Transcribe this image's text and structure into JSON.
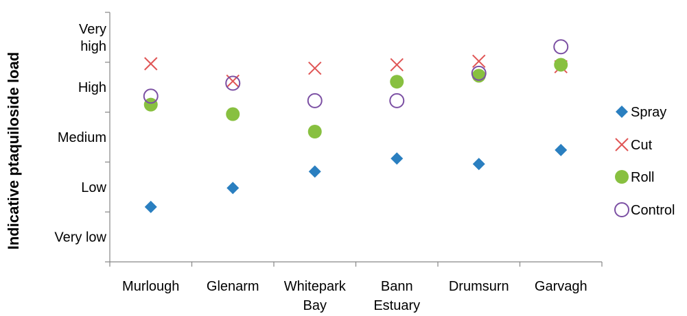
{
  "chart_data": {
    "type": "scatter",
    "title": "",
    "xlabel": "",
    "ylabel": "Indicative ptaquiloside load",
    "categories": [
      [
        "Murlough"
      ],
      [
        "Glenarm"
      ],
      [
        "Whitepark",
        "Bay"
      ],
      [
        "Bann",
        "Estuary"
      ],
      [
        "Drumsurn"
      ],
      [
        "Garvagh"
      ]
    ],
    "y_levels": [
      [
        "Very low"
      ],
      [
        "Low"
      ],
      [
        "Medium"
      ],
      [
        "High"
      ],
      [
        "Very",
        "high"
      ]
    ],
    "ylim": [
      0,
      5
    ],
    "grid": false,
    "legend_position": "right",
    "series": [
      {
        "name": "Spray",
        "marker": "diamond",
        "color": "#2a7fc0",
        "values": [
          1.1,
          1.48,
          1.81,
          2.07,
          1.96,
          2.24
        ]
      },
      {
        "name": "Cut",
        "marker": "x",
        "color": "#e05555",
        "values": [
          3.97,
          3.62,
          3.88,
          3.95,
          4.02,
          3.91
        ]
      },
      {
        "name": "Roll",
        "marker": "circle",
        "color": "#88c040",
        "values": [
          3.15,
          2.96,
          2.61,
          3.61,
          3.73,
          3.95
        ]
      },
      {
        "name": "Control",
        "marker": "circle-open",
        "color": "#7b4fa3",
        "values": [
          3.32,
          3.58,
          3.23,
          3.23,
          3.78,
          4.31
        ]
      }
    ]
  }
}
